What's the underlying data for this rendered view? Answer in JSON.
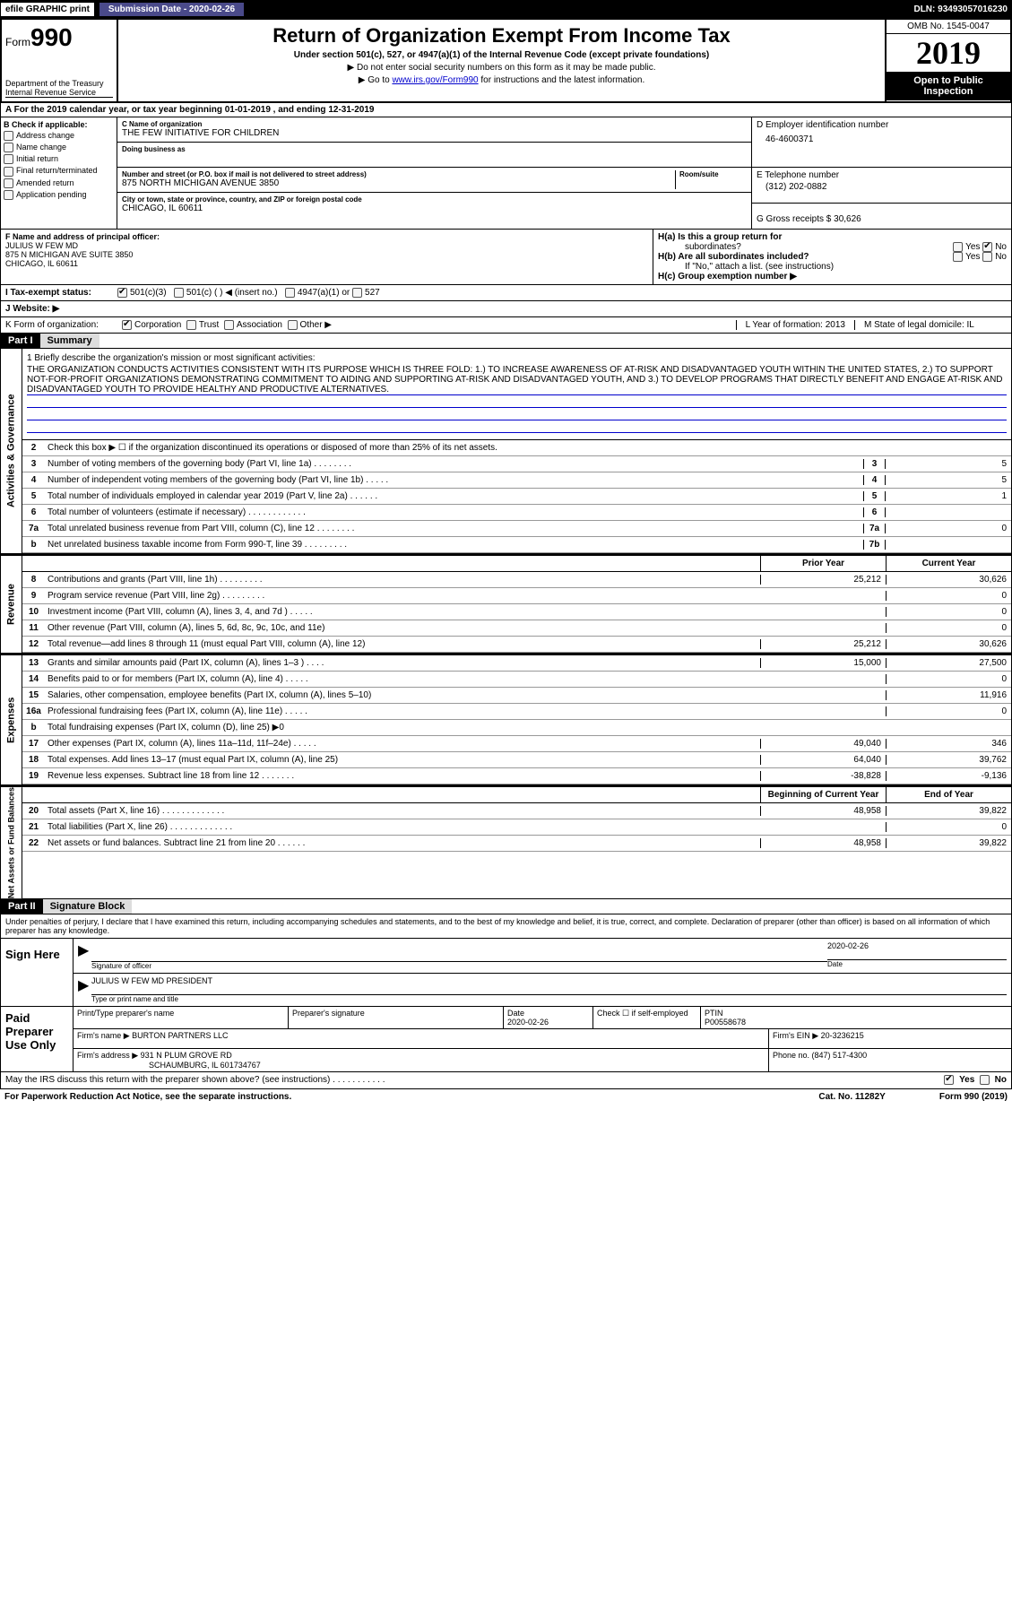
{
  "topbar": {
    "efile": "efile GRAPHIC print",
    "subdate_label": "Submission Date - 2020-02-26",
    "dln": "DLN: 93493057016230"
  },
  "header": {
    "form_prefix": "Form",
    "form_num": "990",
    "dept": "Department of the Treasury",
    "irs": "Internal Revenue Service",
    "title": "Return of Organization Exempt From Income Tax",
    "subtitle": "Under section 501(c), 527, or 4947(a)(1) of the Internal Revenue Code (except private foundations)",
    "note1": "▶ Do not enter social security numbers on this form as it may be made public.",
    "note2_pre": "▶ Go to ",
    "note2_link": "www.irs.gov/Form990",
    "note2_post": " for instructions and the latest information.",
    "omb": "OMB No. 1545-0047",
    "year": "2019",
    "open": "Open to Public Inspection"
  },
  "row_a": "A   For the 2019 calendar year, or tax year beginning 01-01-2019          , and ending 12-31-2019",
  "col_b": {
    "hdr": "B Check if applicable:",
    "items": [
      "Address change",
      "Name change",
      "Initial return",
      "Final return/terminated",
      "Amended return",
      "Application pending"
    ]
  },
  "col_c": {
    "name_lbl": "C Name of organization",
    "name": "THE FEW INITIATIVE FOR CHILDREN",
    "dba_lbl": "Doing business as",
    "dba": "",
    "addr_lbl": "Number and street (or P.O. box if mail is not delivered to street address)",
    "addr": "875 NORTH MICHIGAN AVENUE 3850",
    "room_lbl": "Room/suite",
    "city_lbl": "City or town, state or province, country, and ZIP or foreign postal code",
    "city": "CHICAGO, IL  60611"
  },
  "col_de": {
    "ein_lbl": "D Employer identification number",
    "ein": "46-4600371",
    "tel_lbl": "E Telephone number",
    "tel": "(312) 202-0882",
    "gross_lbl": "G Gross receipts $ ",
    "gross": "30,626"
  },
  "row_f": {
    "lbl": "F  Name and address of principal officer:",
    "name": "JULIUS W FEW MD",
    "addr1": "875 N MICHIGAN AVE SUITE 3850",
    "addr2": "CHICAGO, IL  60611"
  },
  "row_h": {
    "ha": "H(a)    Is this a group return for",
    "ha2": "subordinates?",
    "hb": "H(b)    Are all subordinates included?",
    "hb_note": "If \"No,\" attach a list. (see instructions)",
    "hc": "H(c)    Group exemption number ▶",
    "yes": "Yes",
    "no": "No"
  },
  "row_i": {
    "lbl": "I    Tax-exempt status:",
    "o1": "501(c)(3)",
    "o2": "501(c) (   ) ◀ (insert no.)",
    "o3": "4947(a)(1) or",
    "o4": "527"
  },
  "row_j": "J   Website: ▶",
  "row_k": {
    "lbl": "K Form of organization:",
    "o1": "Corporation",
    "o2": "Trust",
    "o3": "Association",
    "o4": "Other ▶",
    "l": "L Year of formation: 2013",
    "m": "M State of legal domicile: IL"
  },
  "part1": {
    "hdr": "Part I",
    "title": "Summary",
    "mission_lbl": "1   Briefly describe the organization's mission or most significant activities:",
    "mission": "THE ORGANIZATION CONDUCTS ACTIVITIES CONSISTENT WITH ITS PURPOSE WHICH IS THREE FOLD: 1.) TO INCREASE AWARENESS OF AT-RISK AND DISADVANTAGED YOUTH WITHIN THE UNITED STATES, 2.) TO SUPPORT NOT-FOR-PROFIT ORGANIZATIONS DEMONSTRATING COMMITMENT TO AIDING AND SUPPORTING AT-RISK AND DISADVANTAGED YOUTH, AND 3.) TO DEVELOP PROGRAMS THAT DIRECTLY BENEFIT AND ENGAGE AT-RISK AND DISADVANTAGED YOUTH TO PROVIDE HEALTHY AND PRODUCTIVE ALTERNATIVES.",
    "vtab1": "Activities & Governance",
    "vtab2": "Revenue",
    "vtab3": "Expenses",
    "vtab4": "Net Assets or Fund Balances",
    "lines_gov": [
      {
        "n": "2",
        "d": "Check this box ▶ ☐ if the organization discontinued its operations or disposed of more than 25% of its net assets."
      },
      {
        "n": "3",
        "d": "Number of voting members of the governing body (Part VI, line 1a)   .    .    .    .    .    .    .    .",
        "rn": "3",
        "v": "5"
      },
      {
        "n": "4",
        "d": "Number of independent voting members of the governing body (Part VI, line 1b)   .    .    .    .    .",
        "rn": "4",
        "v": "5"
      },
      {
        "n": "5",
        "d": "Total number of individuals employed in calendar year 2019 (Part V, line 2a)   .    .    .    .    .    .",
        "rn": "5",
        "v": "1"
      },
      {
        "n": "6",
        "d": "Total number of volunteers (estimate if necessary)   .    .    .    .    .    .    .    .    .    .    .    .",
        "rn": "6",
        "v": ""
      },
      {
        "n": "7a",
        "d": "Total unrelated business revenue from Part VIII, column (C), line 12   .    .    .    .    .    .    .    .",
        "rn": "7a",
        "v": "0"
      },
      {
        "n": "b",
        "d": "Net unrelated business taxable income from Form 990-T, line 39   .    .    .    .    .    .    .    .    .",
        "rn": "7b",
        "v": ""
      }
    ],
    "col_hdr1": "Prior Year",
    "col_hdr2": "Current Year",
    "lines_rev": [
      {
        "n": "8",
        "d": "Contributions and grants (Part VIII, line 1h)   .    .    .    .    .    .    .    .    .",
        "v1": "25,212",
        "v2": "30,626"
      },
      {
        "n": "9",
        "d": "Program service revenue (Part VIII, line 2g)   .    .    .    .    .    .    .    .    .",
        "v1": "",
        "v2": "0"
      },
      {
        "n": "10",
        "d": "Investment income (Part VIII, column (A), lines 3, 4, and 7d )   .    .    .    .    .",
        "v1": "",
        "v2": "0"
      },
      {
        "n": "11",
        "d": "Other revenue (Part VIII, column (A), lines 5, 6d, 8c, 9c, 10c, and 11e)",
        "v1": "",
        "v2": "0"
      },
      {
        "n": "12",
        "d": "Total revenue—add lines 8 through 11 (must equal Part VIII, column (A), line 12)",
        "v1": "25,212",
        "v2": "30,626"
      }
    ],
    "lines_exp": [
      {
        "n": "13",
        "d": "Grants and similar amounts paid (Part IX, column (A), lines 1–3 )   .    .    .    .",
        "v1": "15,000",
        "v2": "27,500"
      },
      {
        "n": "14",
        "d": "Benefits paid to or for members (Part IX, column (A), line 4)   .    .    .    .    .",
        "v1": "",
        "v2": "0"
      },
      {
        "n": "15",
        "d": "Salaries, other compensation, employee benefits (Part IX, column (A), lines 5–10)",
        "v1": "",
        "v2": "11,916"
      },
      {
        "n": "16a",
        "d": "Professional fundraising fees (Part IX, column (A), line 11e)   .    .    .    .    .",
        "v1": "",
        "v2": "0"
      },
      {
        "n": "b",
        "d": "Total fundraising expenses (Part IX, column (D), line 25) ▶0",
        "v1": "",
        "v2": "",
        "shade": true
      },
      {
        "n": "17",
        "d": "Other expenses (Part IX, column (A), lines 11a–11d, 11f–24e)   .    .    .    .    .",
        "v1": "49,040",
        "v2": "346"
      },
      {
        "n": "18",
        "d": "Total expenses. Add lines 13–17 (must equal Part IX, column (A), line 25)",
        "v1": "64,040",
        "v2": "39,762"
      },
      {
        "n": "19",
        "d": "Revenue less expenses. Subtract line 18 from line 12   .    .    .    .    .    .    .",
        "v1": "-38,828",
        "v2": "-9,136"
      }
    ],
    "col_hdr3": "Beginning of Current Year",
    "col_hdr4": "End of Year",
    "lines_net": [
      {
        "n": "20",
        "d": "Total assets (Part X, line 16)   .    .    .    .    .    .    .    .    .    .    .    .    .",
        "v1": "48,958",
        "v2": "39,822"
      },
      {
        "n": "21",
        "d": "Total liabilities (Part X, line 26)   .    .    .    .    .    .    .    .    .    .    .    .    .",
        "v1": "",
        "v2": "0"
      },
      {
        "n": "22",
        "d": "Net assets or fund balances. Subtract line 21 from line 20   .    .    .    .    .    .",
        "v1": "48,958",
        "v2": "39,822"
      }
    ]
  },
  "part2": {
    "hdr": "Part II",
    "title": "Signature Block",
    "decl": "Under penalties of perjury, I declare that I have examined this return, including accompanying schedules and statements, and to the best of my knowledge and belief, it is true, correct, and complete. Declaration of preparer (other than officer) is based on all information of which preparer has any knowledge.",
    "sign_here": "Sign Here",
    "sig_officer": "Signature of officer",
    "sig_date": "2020-02-26",
    "date_lbl": "Date",
    "officer_name": "JULIUS W FEW MD  PRESIDENT",
    "officer_lbl": "Type or print name and title",
    "paid_prep": "Paid Preparer Use Only",
    "prep_name_lbl": "Print/Type preparer's name",
    "prep_sig_lbl": "Preparer's signature",
    "prep_date_lbl": "Date",
    "prep_date": "2020-02-26",
    "check_lbl": "Check ☐ if self-employed",
    "ptin_lbl": "PTIN",
    "ptin": "P00558678",
    "firm_name_lbl": "Firm's name    ▶",
    "firm_name": "BURTON PARTNERS LLC",
    "firm_ein_lbl": "Firm's EIN ▶",
    "firm_ein": "20-3236215",
    "firm_addr_lbl": "Firm's address ▶",
    "firm_addr": "931 N PLUM GROVE RD",
    "firm_city": "SCHAUMBURG, IL  601734767",
    "phone_lbl": "Phone no. ",
    "phone": "(847) 517-4300"
  },
  "footer": {
    "discuss": "May the IRS discuss this return with the preparer shown above? (see instructions)    .    .    .    .    .    .    .    .    .    .    .",
    "yes": "Yes",
    "no": "No",
    "pra": "For Paperwork Reduction Act Notice, see the separate instructions.",
    "cat": "Cat. No. 11282Y",
    "formref": "Form 990 (2019)"
  }
}
